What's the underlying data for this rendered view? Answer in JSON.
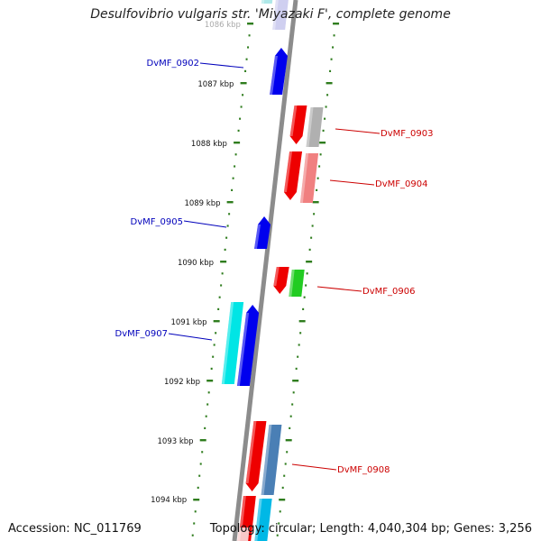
{
  "title": "Desulfovibrio vulgaris str. 'Miyazaki F', complete genome",
  "accession": "Accession: NC_011769",
  "topology": "Topology: circular; Length: 4,040,304 bp; Genes: 3,256",
  "colors": {
    "backbone": "#8c8c8c",
    "tick_left": "#2f7d1e",
    "tick_right": "#2f7d1e",
    "label_left": "#0000bb",
    "label_right": "#cc0000"
  },
  "chart_data": {
    "type": "genome-map",
    "ruler_labels": [
      "1086 kbp",
      "1087 kbp",
      "1088 kbp",
      "1089 kbp",
      "1090 kbp",
      "1091 kbp",
      "1092 kbp",
      "1093 kbp",
      "1094 kbp"
    ],
    "genes": [
      {
        "label": "DvMF_0902",
        "side": "left"
      },
      {
        "label": "DvMF_0903",
        "side": "right"
      },
      {
        "label": "DvMF_0904",
        "side": "right"
      },
      {
        "label": "DvMF_0905",
        "side": "left"
      },
      {
        "label": "DvMF_0906",
        "side": "right"
      },
      {
        "label": "DvMF_0907",
        "side": "left"
      },
      {
        "label": "DvMF_0908",
        "side": "right"
      }
    ]
  }
}
